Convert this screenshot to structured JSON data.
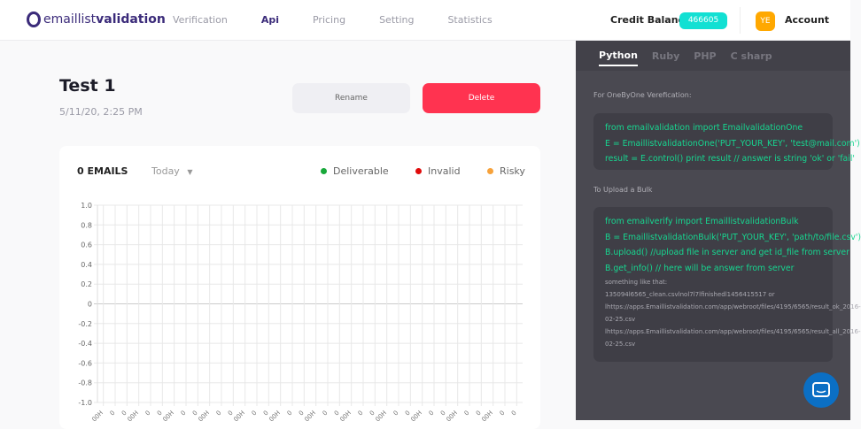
{
  "header": {
    "logo_text_light": "emaillist",
    "logo_text_bold": "validation",
    "nav": [
      "Verification",
      "Api",
      "Pricing",
      "Setting",
      "Statistics"
    ],
    "active_nav": "Api",
    "credit_label": "Credit Balance",
    "credit_value": "466605",
    "avatar_initials": "YE",
    "account_label": "Account"
  },
  "test": {
    "title": "Test 1",
    "date": "5/11/20, 2:25 PM",
    "rename_label": "Rename",
    "delete_label": "Delete"
  },
  "stats": {
    "count_label": "0 EMAILS",
    "period": "Today",
    "legend": [
      {
        "label": "Deliverable",
        "color": "#18a83a"
      },
      {
        "label": "Invalid",
        "color": "#e00b0b"
      },
      {
        "label": "Risky",
        "color": "#f7a23b"
      }
    ]
  },
  "chart_data": {
    "type": "line",
    "ylim": [
      -1.0,
      1.0
    ],
    "y_ticks": [
      "1.0",
      "0.8",
      "0.6",
      "0.4",
      "0.2",
      "0",
      "-0.2",
      "-0.4",
      "-0.6",
      "-0.8",
      "-1.0"
    ],
    "x_ticks": [
      "00H",
      "0",
      "0",
      "00H",
      "0",
      "0",
      "00H",
      "0",
      "0",
      "00H",
      "0",
      "0",
      "00H",
      "0",
      "0",
      "00H",
      "0",
      "0",
      "00H",
      "0",
      "0",
      "00H",
      "0",
      "0",
      "00H",
      "0",
      "0",
      "00H",
      "0",
      "0",
      "00H",
      "0",
      "0",
      "00H",
      "0",
      "0"
    ],
    "series": [],
    "grid": true
  },
  "api": {
    "tabs": [
      "Python",
      "Ruby",
      "PHP",
      "C sharp"
    ],
    "active_tab": "Python",
    "one_label": "For OneByOne Verefication:",
    "one_code": [
      "from emailvalidation import EmailvalidationOne",
      "E = EmaillistvalidationOne('PUT_YOUR_KEY', 'test@mail.com')",
      "result = E.control() print result // answer is string 'ok' or 'fail'"
    ],
    "bulk_label": "To Upload a Bulk",
    "bulk_code": [
      "from emailverify import EmaillistvalidationBulk",
      "B = EmaillistvalidationBulk('PUT_YOUR_KEY', 'path/to/file.csv')",
      "B.upload() //upload file in server and get id_file from server",
      "B.get_info() // here will be answer from server"
    ],
    "bulk_note": [
      "something like that:",
      "135094l6565_clean.csvlnol7l7lfinishedl1456415517 or",
      "lhttps://apps.Emaillistvalidation.com/app/webroot/files/4195/6565/result_ok_2016-",
      "02-25.csv",
      "lhttps://apps.Emaillistvalidation.com/app/webroot/files/4195/6565/result_all_2016-",
      "02-25.csv"
    ]
  }
}
